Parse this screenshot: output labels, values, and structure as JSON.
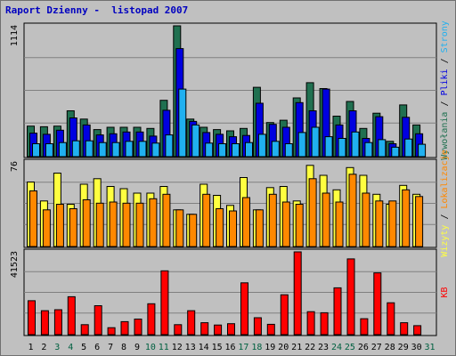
{
  "chart_data": {
    "type": "bar",
    "title": "Raport Dzienny -  listopad 2007",
    "days": [
      "1",
      "2",
      "3",
      "4",
      "5",
      "6",
      "7",
      "8",
      "9",
      "10",
      "11",
      "12",
      "13",
      "14",
      "15",
      "16",
      "17",
      "18",
      "19",
      "20",
      "21",
      "22",
      "23",
      "24",
      "25",
      "26",
      "27",
      "28",
      "29",
      "30",
      "31"
    ],
    "weekend_days": [
      "3",
      "4",
      "10",
      "11",
      "17",
      "18",
      "24",
      "25",
      "31"
    ],
    "colors": {
      "normal_day": "#000000",
      "weekend_day": "#006040",
      "wywolania": "#207050",
      "pliki": "#0000e0",
      "strony": "#20b0f0",
      "wizyty": "#ffff40",
      "lokalizacje": "#ff8800",
      "kb": "#ff0000"
    },
    "panels": [
      {
        "name": "top",
        "ymax_label": "1114",
        "ymax": 1114,
        "legend": [
          {
            "label": "Wywołania",
            "color": "#207050"
          },
          {
            "label": "Pliki",
            "color": "#0000e0"
          },
          {
            "label": "Strony",
            "color": "#20b0f0"
          }
        ],
        "series": [
          {
            "name": "Wywołania",
            "color": "#207050",
            "values": [
              260,
              255,
              260,
              390,
              320,
              230,
              250,
              250,
              250,
              240,
              480,
              1114,
              320,
              250,
              230,
              220,
              240,
              590,
              290,
              310,
              500,
              630,
              580,
              345,
              470,
              240,
              370,
              130,
              440,
              270,
              0
            ]
          },
          {
            "name": "Pliki",
            "color": "#0000e0",
            "values": [
              200,
              190,
              225,
              330,
              270,
              185,
              195,
              210,
              210,
              175,
              395,
              920,
              300,
              205,
              190,
              170,
              180,
              455,
              275,
              250,
              460,
              390,
              575,
              270,
              390,
              155,
              340,
              110,
              335,
              195,
              0
            ]
          },
          {
            "name": "Strony",
            "color": "#20b0f0",
            "values": [
              110,
              110,
              120,
              135,
              135,
              120,
              120,
              130,
              130,
              115,
              185,
              575,
              270,
              115,
              110,
              110,
              120,
              190,
              130,
              110,
              205,
              250,
              170,
              155,
              210,
              120,
              145,
              80,
              150,
              105,
              0
            ]
          }
        ]
      },
      {
        "name": "middle",
        "ymax_label": "76",
        "ymax": 76,
        "legend": [
          {
            "label": "Wizyty",
            "color": "#ffff40"
          },
          {
            "label": "Lokalizacje",
            "color": "#ff8800"
          }
        ],
        "series": [
          {
            "name": "Wizyty",
            "color": "#ffff40",
            "values": [
              58,
              41,
              66,
              38,
              56,
              61,
              54,
              52,
              48,
              48,
              54,
              33,
              29,
              56,
              46,
              37,
              62,
              33,
              53,
              54,
              41,
              73,
              64,
              51,
              71,
              64,
              47,
              38,
              55,
              47,
              0
            ]
          },
          {
            "name": "Lokalizacje",
            "color": "#ff8800",
            "values": [
              50,
              33,
              38,
              34,
              42,
              39,
              40,
              39,
              39,
              43,
              47,
              33,
              29,
              47,
              34,
              32,
              44,
              33,
              47,
              40,
              38,
              61,
              48,
              40,
              65,
              48,
              41,
              41,
              51,
              45,
              0
            ]
          }
        ]
      },
      {
        "name": "bottom",
        "ymax_label": "41523",
        "ymax": 41523,
        "legend": [
          {
            "label": "KB",
            "color": "#ff0000"
          }
        ],
        "series": [
          {
            "name": "KB",
            "color": "#ff0000",
            "values": [
              17000,
              12000,
              12500,
              19000,
              5000,
              14500,
              3500,
              6500,
              7800,
              15500,
              32000,
              5000,
              12000,
              6000,
              4800,
              5500,
              26000,
              8500,
              5200,
              20000,
              41523,
              11500,
              11000,
              23500,
              38000,
              8000,
              31000,
              16000,
              6000,
              4500,
              0
            ]
          }
        ]
      }
    ]
  }
}
